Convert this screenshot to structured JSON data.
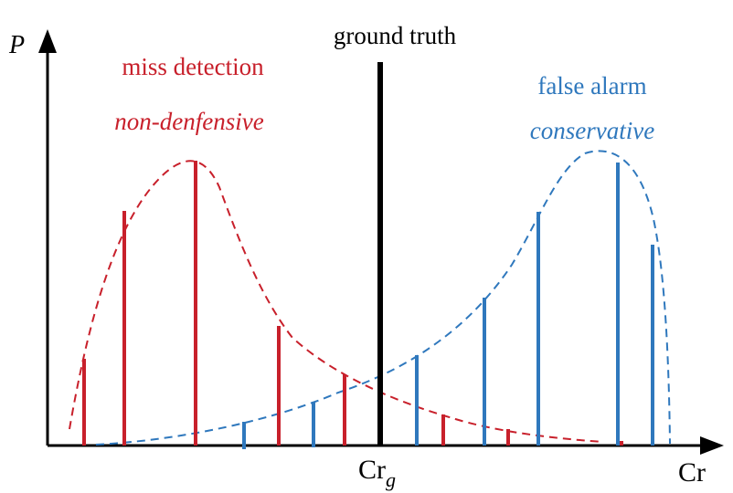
{
  "labels": {
    "y_axis": "P",
    "x_axis": "Cr",
    "ground_truth": "ground truth",
    "cr_g_base": "Cr",
    "cr_g_sub": "g",
    "miss_detection": "miss detection",
    "non_defensive": "non-denfensive",
    "false_alarm": "false alarm",
    "conservative": "conservative"
  },
  "colors": {
    "red": "#c8202b",
    "blue": "#2f78bd",
    "black": "#000000"
  }
}
